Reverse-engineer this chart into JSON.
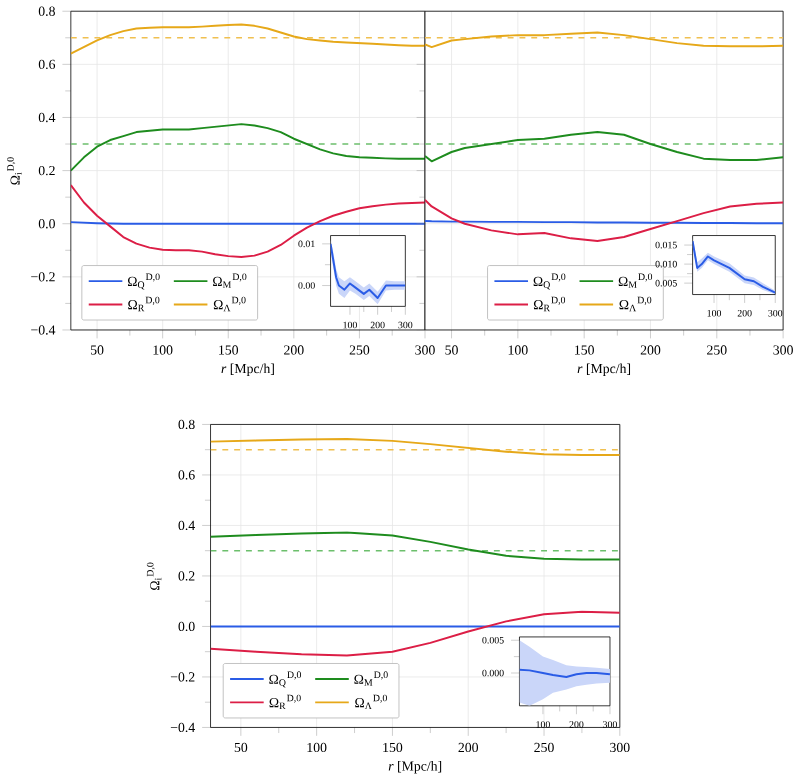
{
  "chart_data": [
    {
      "type": "line",
      "xlabel": "*r* [Mpc/h]",
      "ylabel": "Ω$_{i}$$^{D,0}$",
      "xlim": [
        30,
        300
      ],
      "ylim": [
        -0.4,
        0.8
      ],
      "xticks": [
        50,
        100,
        150,
        200,
        250,
        300
      ],
      "yticks": [
        {
          "value": -0.4,
          "label": "−0.4"
        },
        {
          "value": -0.2,
          "label": "−0.2"
        },
        {
          "value": 0,
          "label": "0.0"
        },
        {
          "value": 0.2,
          "label": "0.2"
        },
        {
          "value": 0.4,
          "label": "0.4"
        },
        {
          "value": 0.6,
          "label": "0.6"
        },
        {
          "value": 0.8,
          "label": "0.8"
        }
      ],
      "grid": true,
      "legend": "bottom left",
      "x": [
        30,
        40,
        50,
        60,
        70,
        80,
        90,
        100,
        110,
        120,
        130,
        140,
        150,
        160,
        170,
        180,
        190,
        200,
        210,
        220,
        230,
        240,
        250,
        260,
        270,
        280,
        290,
        300
      ],
      "series": [
        {
          "name": "Ω$_{Q}$$^{D,0}$",
          "color": "#2a5ce6",
          "values": [
            0.006,
            0.004,
            0.002,
            0.001,
            0.0,
            0.0,
            0.0,
            0.0,
            0.0,
            0.0,
            0.0,
            0.0,
            0.0,
            0.0,
            0.0,
            0.0,
            0.0,
            0.0,
            0.0,
            0.0,
            0.0,
            0.0,
            0.0,
            0.0,
            0.0,
            0.0,
            0.0,
            0.0
          ]
        },
        {
          "name": "Ω$_{M}$$^{D,0}$",
          "color": "#1e8c1e",
          "values": [
            0.2,
            0.25,
            0.29,
            0.315,
            0.33,
            0.345,
            0.35,
            0.355,
            0.355,
            0.355,
            0.36,
            0.365,
            0.37,
            0.375,
            0.37,
            0.36,
            0.345,
            0.32,
            0.3,
            0.28,
            0.265,
            0.255,
            0.25,
            0.248,
            0.246,
            0.245,
            0.245,
            0.245
          ]
        },
        {
          "name": "Ω$_{R}$$^{D,0}$",
          "color": "#dc1e46",
          "values": [
            0.145,
            0.08,
            0.03,
            -0.01,
            -0.05,
            -0.075,
            -0.09,
            -0.098,
            -0.1,
            -0.1,
            -0.105,
            -0.115,
            -0.122,
            -0.125,
            -0.12,
            -0.105,
            -0.08,
            -0.045,
            -0.015,
            0.01,
            0.03,
            0.045,
            0.058,
            0.066,
            0.072,
            0.076,
            0.078,
            0.08
          ]
        },
        {
          "name": "Ω$_{Λ}$$^{D,0}$",
          "color": "#e6a819",
          "values": [
            0.64,
            0.665,
            0.69,
            0.71,
            0.725,
            0.735,
            0.738,
            0.74,
            0.74,
            0.74,
            0.742,
            0.745,
            0.748,
            0.75,
            0.745,
            0.735,
            0.72,
            0.705,
            0.695,
            0.69,
            0.685,
            0.682,
            0.68,
            0.678,
            0.675,
            0.672,
            0.67,
            0.67
          ]
        }
      ],
      "ref_lines": [
        {
          "axis": "y",
          "value": 0.7,
          "color": "#f0c050",
          "line_style": "dashed"
        },
        {
          "axis": "y",
          "value": 0.3,
          "color": "#6cbf6c",
          "line_style": "dashed"
        }
      ]
    },
    {
      "type": "line",
      "xlabel": "*r* [Mpc/h]",
      "xlim": [
        30,
        300
      ],
      "ylim": [
        -0.4,
        0.8
      ],
      "xticks": [
        50,
        100,
        150,
        200,
        250,
        300
      ],
      "yticks": [
        -0.4,
        -0.2,
        0,
        0.2,
        0.4,
        0.6,
        0.8
      ],
      "tick_labels": "x",
      "grid": true,
      "legend": "bottom",
      "x": [
        30,
        35,
        50,
        60,
        80,
        100,
        120,
        140,
        160,
        180,
        200,
        220,
        240,
        260,
        280,
        300
      ],
      "series": [
        {
          "name": "Ω$_{Q}$$^{D,0}$",
          "color": "#2a5ce6",
          "values": [
            0.01,
            0.009,
            0.008,
            0.008,
            0.007,
            0.007,
            0.006,
            0.006,
            0.005,
            0.005,
            0.004,
            0.004,
            0.003,
            0.003,
            0.002,
            0.002
          ]
        },
        {
          "name": "Ω$_{M}$$^{D,0}$",
          "color": "#1e8c1e",
          "values": [
            0.255,
            0.235,
            0.27,
            0.285,
            0.3,
            0.315,
            0.32,
            0.335,
            0.345,
            0.335,
            0.3,
            0.27,
            0.245,
            0.24,
            0.24,
            0.25
          ]
        },
        {
          "name": "Ω$_{R}$$^{D,0}$",
          "color": "#dc1e46",
          "values": [
            0.09,
            0.065,
            0.02,
            0.0,
            -0.025,
            -0.04,
            -0.035,
            -0.055,
            -0.065,
            -0.05,
            -0.02,
            0.01,
            0.04,
            0.065,
            0.075,
            0.08
          ]
        },
        {
          "name": "Ω$_{Λ}$$^{D,0}$",
          "color": "#e6a819",
          "values": [
            0.675,
            0.665,
            0.69,
            0.695,
            0.705,
            0.71,
            0.71,
            0.715,
            0.72,
            0.71,
            0.695,
            0.68,
            0.67,
            0.668,
            0.668,
            0.67
          ]
        }
      ],
      "ref_lines": [
        {
          "axis": "y",
          "value": 0.7,
          "color": "#f0c050",
          "line_style": "dashed"
        },
        {
          "axis": "y",
          "value": 0.3,
          "color": "#6cbf6c",
          "line_style": "dashed"
        }
      ]
    },
    {
      "type": "line",
      "xlabel": "*r* [Mpc/h]",
      "ylabel": "Ω$_{i}$$^{D,0}$",
      "xlim": [
        30,
        300
      ],
      "ylim": [
        -0.4,
        0.8
      ],
      "xticks": [
        50,
        100,
        150,
        200,
        250,
        300
      ],
      "yticks": [
        {
          "value": -0.4,
          "label": "−0.4"
        },
        {
          "value": -0.2,
          "label": "−0.2"
        },
        {
          "value": 0,
          "label": "0.0"
        },
        {
          "value": 0.2,
          "label": "0.2"
        },
        {
          "value": 0.4,
          "label": "0.4"
        },
        {
          "value": 0.6,
          "label": "0.6"
        },
        {
          "value": 0.8,
          "label": "0.8"
        }
      ],
      "grid": true,
      "legend": "bottom left",
      "x": [
        30,
        60,
        90,
        120,
        150,
        175,
        200,
        225,
        250,
        275,
        300
      ],
      "series": [
        {
          "name": "Ω$_{Q}$$^{D,0}$",
          "color": "#2a5ce6",
          "values": [
            0.0,
            0.0,
            0.0,
            0.0,
            0.0,
            0.0,
            0.0,
            0.0,
            0.0,
            0.0,
            0.0
          ]
        },
        {
          "name": "Ω$_{M}$$^{D,0}$",
          "color": "#1e8c1e",
          "values": [
            0.355,
            0.362,
            0.368,
            0.372,
            0.36,
            0.335,
            0.305,
            0.28,
            0.268,
            0.265,
            0.265
          ]
        },
        {
          "name": "Ω$_{R}$$^{D,0}$",
          "color": "#dc1e46",
          "values": [
            -0.088,
            -0.1,
            -0.11,
            -0.115,
            -0.1,
            -0.065,
            -0.02,
            0.02,
            0.048,
            0.058,
            0.054
          ]
        },
        {
          "name": "Ω$_{Λ}$$^{D,0}$",
          "color": "#e6a819",
          "values": [
            0.732,
            0.736,
            0.74,
            0.742,
            0.735,
            0.722,
            0.707,
            0.692,
            0.682,
            0.679,
            0.679
          ]
        }
      ],
      "ref_lines": [
        {
          "axis": "y",
          "value": 0.7,
          "color": "#f0c050",
          "line_style": "dashed"
        },
        {
          "axis": "y",
          "value": 0.3,
          "color": "#6cbf6c",
          "line_style": "dashed"
        }
      ]
    },
    {
      "type": "line",
      "xlim": [
        30,
        300
      ],
      "ylim": [
        -0.005,
        0.012
      ],
      "xticks": [
        100,
        200,
        300
      ],
      "yticks": [
        {
          "value": 0,
          "label": "0.00"
        },
        {
          "value": 0.01,
          "label": "0.01"
        }
      ],
      "x": [
        30,
        40,
        50,
        60,
        80,
        100,
        120,
        150,
        170,
        200,
        230,
        260,
        300
      ],
      "series": [
        {
          "color": "#2a5ce6",
          "values": [
            0.01,
            0.006,
            0.002,
            0.0,
            -0.001,
            0.0005,
            -0.0005,
            -0.002,
            -0.001,
            -0.003,
            0.0,
            0.0,
            0.0
          ],
          "lower": [
            0.008,
            0.004,
            0.0,
            -0.002,
            -0.003,
            -0.0012,
            -0.002,
            -0.0035,
            -0.0025,
            -0.0045,
            -0.0012,
            -0.001,
            -0.001
          ],
          "upper": [
            0.011,
            0.008,
            0.004,
            0.002,
            0.001,
            0.002,
            0.001,
            -0.0005,
            0.0005,
            -0.0015,
            0.0012,
            0.001,
            0.001
          ]
        }
      ]
    },
    {
      "type": "line",
      "xlim": [
        30,
        300
      ],
      "ylim": [
        0.002,
        0.0175
      ],
      "xticks": [
        100,
        200,
        300
      ],
      "yticks": [
        {
          "value": 0.005,
          "label": "0.005"
        },
        {
          "value": 0.01,
          "label": "0.010"
        },
        {
          "value": 0.015,
          "label": "0.015"
        }
      ],
      "x": [
        30,
        45,
        60,
        80,
        100,
        150,
        200,
        230,
        260,
        300
      ],
      "series": [
        {
          "color": "#2a5ce6",
          "values": [
            0.016,
            0.009,
            0.01,
            0.012,
            0.011,
            0.009,
            0.006,
            0.0055,
            0.004,
            0.0025
          ],
          "lower": [
            0.0145,
            0.008,
            0.009,
            0.011,
            0.01,
            0.008,
            0.005,
            0.0045,
            0.0032,
            0.0021
          ],
          "upper": [
            0.017,
            0.0105,
            0.0115,
            0.013,
            0.012,
            0.0102,
            0.007,
            0.0065,
            0.005,
            0.003
          ]
        }
      ]
    },
    {
      "type": "line",
      "xlim": [
        30,
        300
      ],
      "ylim": [
        -0.005,
        0.0055
      ],
      "xticks": [
        100,
        200,
        300
      ],
      "yticks": [
        {
          "value": 0,
          "label": "0.000"
        },
        {
          "value": 0.005,
          "label": "0.005"
        }
      ],
      "x": [
        30,
        60,
        100,
        130,
        170,
        200,
        230,
        260,
        300
      ],
      "series": [
        {
          "color": "#2a5ce6",
          "values": [
            0.0005,
            0.0004,
            0.0,
            -0.0003,
            -0.0006,
            -0.0002,
            0.0,
            0.0,
            -0.0002
          ],
          "lower": [
            -0.0045,
            -0.005,
            -0.004,
            -0.003,
            -0.0025,
            -0.002,
            -0.0018,
            -0.0016,
            -0.0015
          ],
          "upper": [
            0.005,
            0.004,
            0.0025,
            0.002,
            0.0012,
            0.001,
            0.0009,
            0.0008,
            0.0006
          ]
        }
      ]
    }
  ]
}
